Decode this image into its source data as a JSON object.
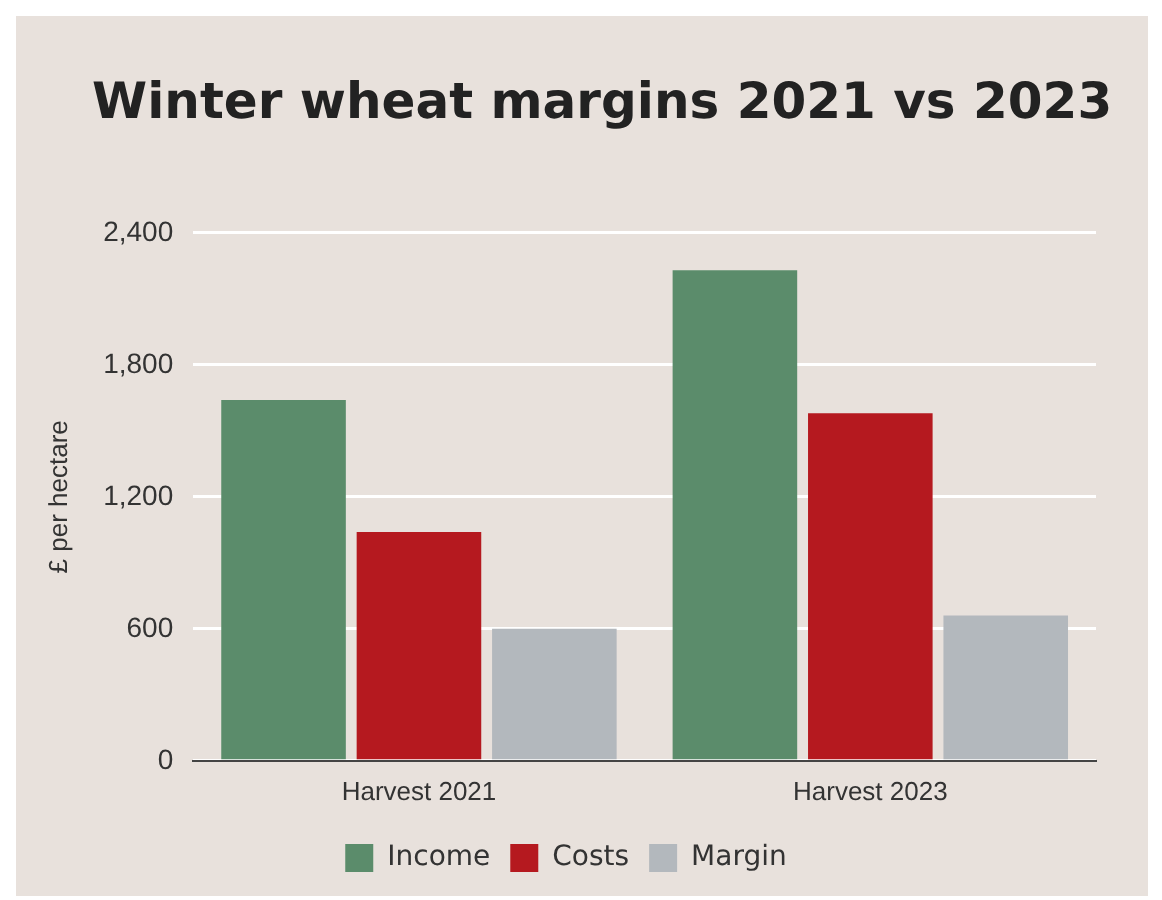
{
  "chart_data": {
    "type": "bar",
    "title": "Winter wheat margins 2021 vs 2023",
    "ylabel": "£ per hectare",
    "categories": [
      "Harvest 2021",
      "Harvest 2023"
    ],
    "series": [
      {
        "name": "Income",
        "color": "#5b8c6b",
        "values": [
          1640,
          2230
        ]
      },
      {
        "name": "Costs",
        "color": "#b5191f",
        "values": [
          1040,
          1580
        ]
      },
      {
        "name": "Margin",
        "color": "#b3b8bd",
        "values": [
          600,
          660
        ]
      }
    ],
    "ylim": [
      0,
      2400
    ],
    "yticks": [
      {
        "value": 0,
        "label": "0"
      },
      {
        "value": 600,
        "label": "600"
      },
      {
        "value": 1200,
        "label": "1,200"
      },
      {
        "value": 1800,
        "label": "1,800"
      },
      {
        "value": 2400,
        "label": "2,400"
      }
    ],
    "grid": "y",
    "legend": "bottom"
  }
}
